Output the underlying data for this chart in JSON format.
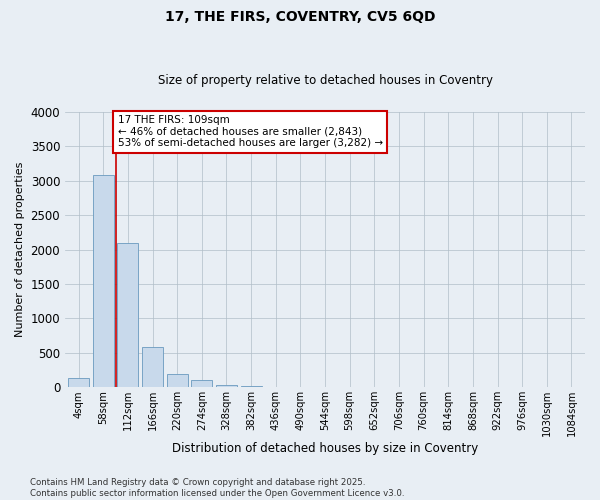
{
  "title1": "17, THE FIRS, COVENTRY, CV5 6QD",
  "title2": "Size of property relative to detached houses in Coventry",
  "xlabel": "Distribution of detached houses by size in Coventry",
  "ylabel": "Number of detached properties",
  "bins": [
    "4sqm",
    "58sqm",
    "112sqm",
    "166sqm",
    "220sqm",
    "274sqm",
    "328sqm",
    "382sqm",
    "436sqm",
    "490sqm",
    "544sqm",
    "598sqm",
    "652sqm",
    "706sqm",
    "760sqm",
    "814sqm",
    "868sqm",
    "922sqm",
    "976sqm",
    "1030sqm",
    "1084sqm"
  ],
  "values": [
    130,
    3080,
    2100,
    590,
    200,
    110,
    40,
    15,
    8,
    3,
    2,
    1,
    1,
    0,
    0,
    0,
    0,
    0,
    0,
    0,
    0
  ],
  "bar_color": "#c8d9eb",
  "bar_edge_color": "#6a9abf",
  "vline_x_index": 2,
  "vline_color": "#cc0000",
  "annotation_line1": "17 THE FIRS: 109sqm",
  "annotation_line2": "← 46% of detached houses are smaller (2,843)",
  "annotation_line3": "53% of semi-detached houses are larger (3,282) →",
  "annotation_box_color": "#cc0000",
  "ylim": [
    0,
    4000
  ],
  "yticks": [
    0,
    500,
    1000,
    1500,
    2000,
    2500,
    3000,
    3500,
    4000
  ],
  "footnote": "Contains HM Land Registry data © Crown copyright and database right 2025.\nContains public sector information licensed under the Open Government Licence v3.0.",
  "background_color": "#e8eef4",
  "plot_bg_color": "#e8eef4",
  "grid_color": "#b0bec8"
}
